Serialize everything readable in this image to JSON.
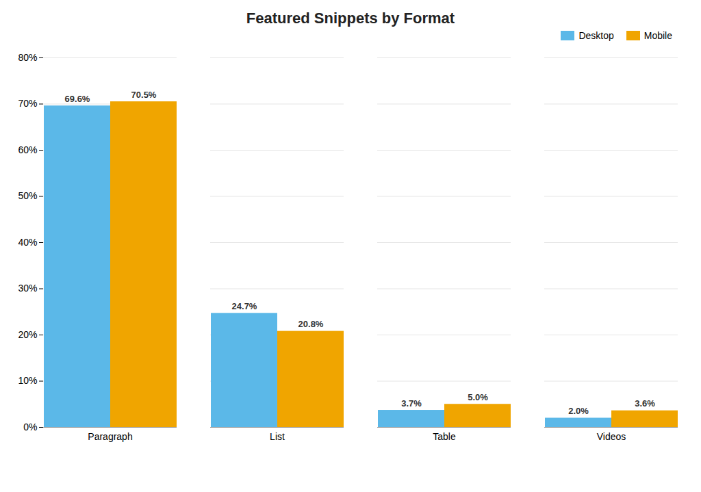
{
  "chart_data": {
    "type": "bar",
    "title": "Featured Snippets by Format",
    "categories": [
      "Paragraph",
      "List",
      "Table",
      "Videos"
    ],
    "series": [
      {
        "name": "Desktop",
        "color": "#5BB8E8",
        "values": [
          69.6,
          24.7,
          3.7,
          2.0
        ],
        "value_labels": [
          "69.6%",
          "24.7%",
          "3.7%",
          "2.0%"
        ]
      },
      {
        "name": "Mobile",
        "color": "#F0A500",
        "values": [
          70.5,
          20.8,
          5.0,
          3.6
        ],
        "value_labels": [
          "70.5%",
          "20.8%",
          "5.0%",
          "3.6%"
        ]
      }
    ],
    "ylim": [
      0,
      80
    ],
    "yticks": [
      {
        "value": 0,
        "label": "0%"
      },
      {
        "value": 10,
        "label": "10%"
      },
      {
        "value": 20,
        "label": "20%"
      },
      {
        "value": 30,
        "label": "30%"
      },
      {
        "value": 40,
        "label": "40%"
      },
      {
        "value": 50,
        "label": "50%"
      },
      {
        "value": 60,
        "label": "60%"
      },
      {
        "value": 70,
        "label": "70%"
      },
      {
        "value": 80,
        "label": "80%"
      }
    ],
    "grid": true,
    "legend": "upper right",
    "data_labels": true
  }
}
